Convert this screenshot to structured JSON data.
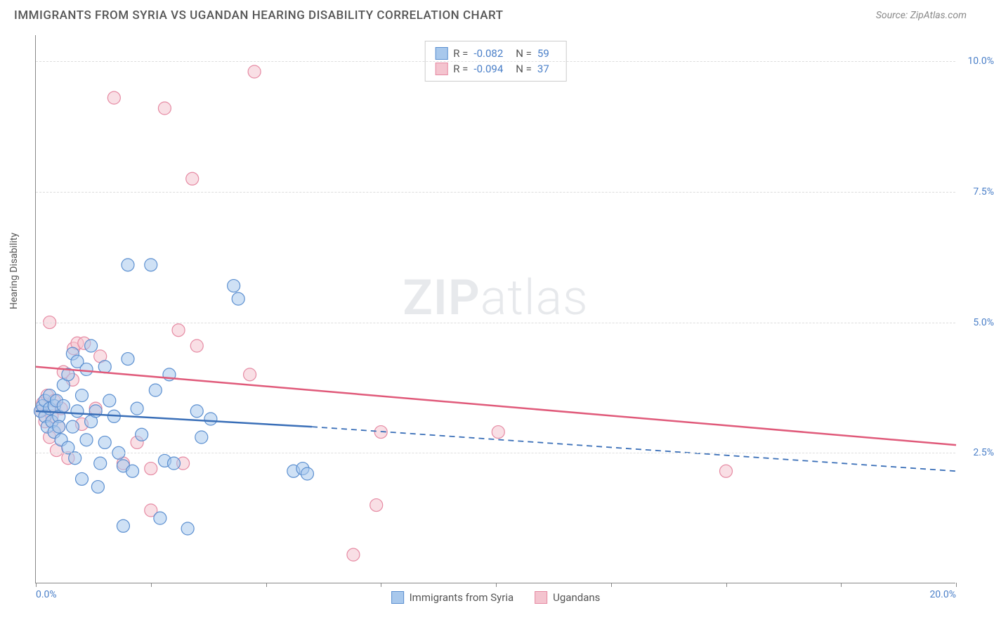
{
  "title": "IMMIGRANTS FROM SYRIA VS UGANDAN HEARING DISABILITY CORRELATION CHART",
  "source": "Source: ZipAtlas.com",
  "ylabel": "Hearing Disability",
  "watermark_bold": "ZIP",
  "watermark_light": "atlas",
  "xlim": [
    0,
    20
  ],
  "ylim": [
    0,
    10.5
  ],
  "yticks": [
    {
      "v": 2.5,
      "label": "2.5%"
    },
    {
      "v": 5.0,
      "label": "5.0%"
    },
    {
      "v": 7.5,
      "label": "7.5%"
    },
    {
      "v": 10.0,
      "label": "10.0%"
    }
  ],
  "xticks": [
    0,
    2.5,
    5.0,
    7.5,
    10.0,
    12.5,
    15.0,
    17.5,
    20.0
  ],
  "xtick_labels": {
    "0": "0.0%",
    "20": "20.0%"
  },
  "series": [
    {
      "name": "Immigrants from Syria",
      "color_fill": "#a8c8ec",
      "color_stroke": "#5b8fd0",
      "R": "-0.082",
      "N": "59",
      "trend": {
        "x1": 0,
        "y1": 3.3,
        "x2_solid": 6.0,
        "y2_solid": 3.0,
        "x2": 20,
        "y2": 2.15,
        "stroke": "#3a6fb8"
      },
      "points": [
        [
          0.1,
          3.3
        ],
        [
          0.15,
          3.4
        ],
        [
          0.2,
          3.2
        ],
        [
          0.2,
          3.5
        ],
        [
          0.25,
          3.0
        ],
        [
          0.3,
          3.35
        ],
        [
          0.3,
          3.6
        ],
        [
          0.35,
          3.1
        ],
        [
          0.4,
          3.4
        ],
        [
          0.4,
          2.9
        ],
        [
          0.45,
          3.5
        ],
        [
          0.5,
          3.2
        ],
        [
          0.5,
          3.0
        ],
        [
          0.55,
          2.75
        ],
        [
          0.6,
          3.4
        ],
        [
          0.6,
          3.8
        ],
        [
          0.7,
          4.0
        ],
        [
          0.7,
          2.6
        ],
        [
          0.8,
          4.4
        ],
        [
          0.8,
          3.0
        ],
        [
          0.85,
          2.4
        ],
        [
          0.9,
          3.3
        ],
        [
          0.9,
          4.25
        ],
        [
          1.0,
          3.6
        ],
        [
          1.0,
          2.0
        ],
        [
          1.1,
          4.1
        ],
        [
          1.1,
          2.75
        ],
        [
          1.2,
          3.1
        ],
        [
          1.2,
          4.55
        ],
        [
          1.3,
          3.3
        ],
        [
          1.35,
          1.85
        ],
        [
          1.4,
          2.3
        ],
        [
          1.5,
          4.15
        ],
        [
          1.5,
          2.7
        ],
        [
          1.6,
          3.5
        ],
        [
          1.7,
          3.2
        ],
        [
          1.8,
          2.5
        ],
        [
          1.9,
          2.25
        ],
        [
          1.9,
          1.1
        ],
        [
          2.0,
          4.3
        ],
        [
          2.0,
          6.1
        ],
        [
          2.1,
          2.15
        ],
        [
          2.2,
          3.35
        ],
        [
          2.3,
          2.85
        ],
        [
          2.5,
          6.1
        ],
        [
          2.6,
          3.7
        ],
        [
          2.7,
          1.25
        ],
        [
          2.8,
          2.35
        ],
        [
          2.9,
          4.0
        ],
        [
          3.0,
          2.3
        ],
        [
          3.3,
          1.05
        ],
        [
          3.5,
          3.3
        ],
        [
          3.6,
          2.8
        ],
        [
          3.8,
          3.15
        ],
        [
          4.3,
          5.7
        ],
        [
          4.4,
          5.45
        ],
        [
          5.6,
          2.15
        ],
        [
          5.8,
          2.2
        ],
        [
          5.9,
          2.1
        ]
      ]
    },
    {
      "name": "Ugandans",
      "color_fill": "#f4c4cf",
      "color_stroke": "#e68aa3",
      "R": "-0.094",
      "N": "37",
      "trend": {
        "x1": 0,
        "y1": 4.15,
        "x2_solid": 20,
        "y2_solid": 2.65,
        "x2": 20,
        "y2": 2.65,
        "stroke": "#e05a7a"
      },
      "points": [
        [
          0.1,
          3.3
        ],
        [
          0.15,
          3.45
        ],
        [
          0.2,
          3.1
        ],
        [
          0.25,
          3.6
        ],
        [
          0.3,
          2.8
        ],
        [
          0.3,
          5.0
        ],
        [
          0.35,
          3.2
        ],
        [
          0.4,
          3.5
        ],
        [
          0.45,
          2.55
        ],
        [
          0.5,
          3.0
        ],
        [
          0.55,
          3.35
        ],
        [
          0.6,
          4.05
        ],
        [
          0.7,
          2.4
        ],
        [
          0.8,
          3.9
        ],
        [
          0.82,
          4.5
        ],
        [
          0.9,
          4.6
        ],
        [
          1.0,
          3.05
        ],
        [
          1.05,
          4.6
        ],
        [
          1.3,
          3.35
        ],
        [
          1.4,
          4.35
        ],
        [
          1.7,
          9.3
        ],
        [
          1.9,
          2.3
        ],
        [
          2.2,
          2.7
        ],
        [
          2.5,
          1.4
        ],
        [
          2.5,
          2.2
        ],
        [
          2.8,
          9.1
        ],
        [
          3.1,
          4.85
        ],
        [
          3.2,
          2.3
        ],
        [
          3.4,
          7.75
        ],
        [
          3.5,
          4.55
        ],
        [
          4.65,
          4.0
        ],
        [
          4.75,
          9.8
        ],
        [
          6.9,
          0.55
        ],
        [
          7.4,
          1.5
        ],
        [
          7.5,
          2.9
        ],
        [
          10.05,
          2.9
        ],
        [
          15.0,
          2.15
        ]
      ]
    }
  ],
  "marker_radius": 9,
  "marker_opacity": 0.55,
  "chart_bg": "#ffffff",
  "grid_color": "#dddddd",
  "axis_color": "#888888",
  "text_color": "#555555",
  "value_color": "#4a7fc8"
}
